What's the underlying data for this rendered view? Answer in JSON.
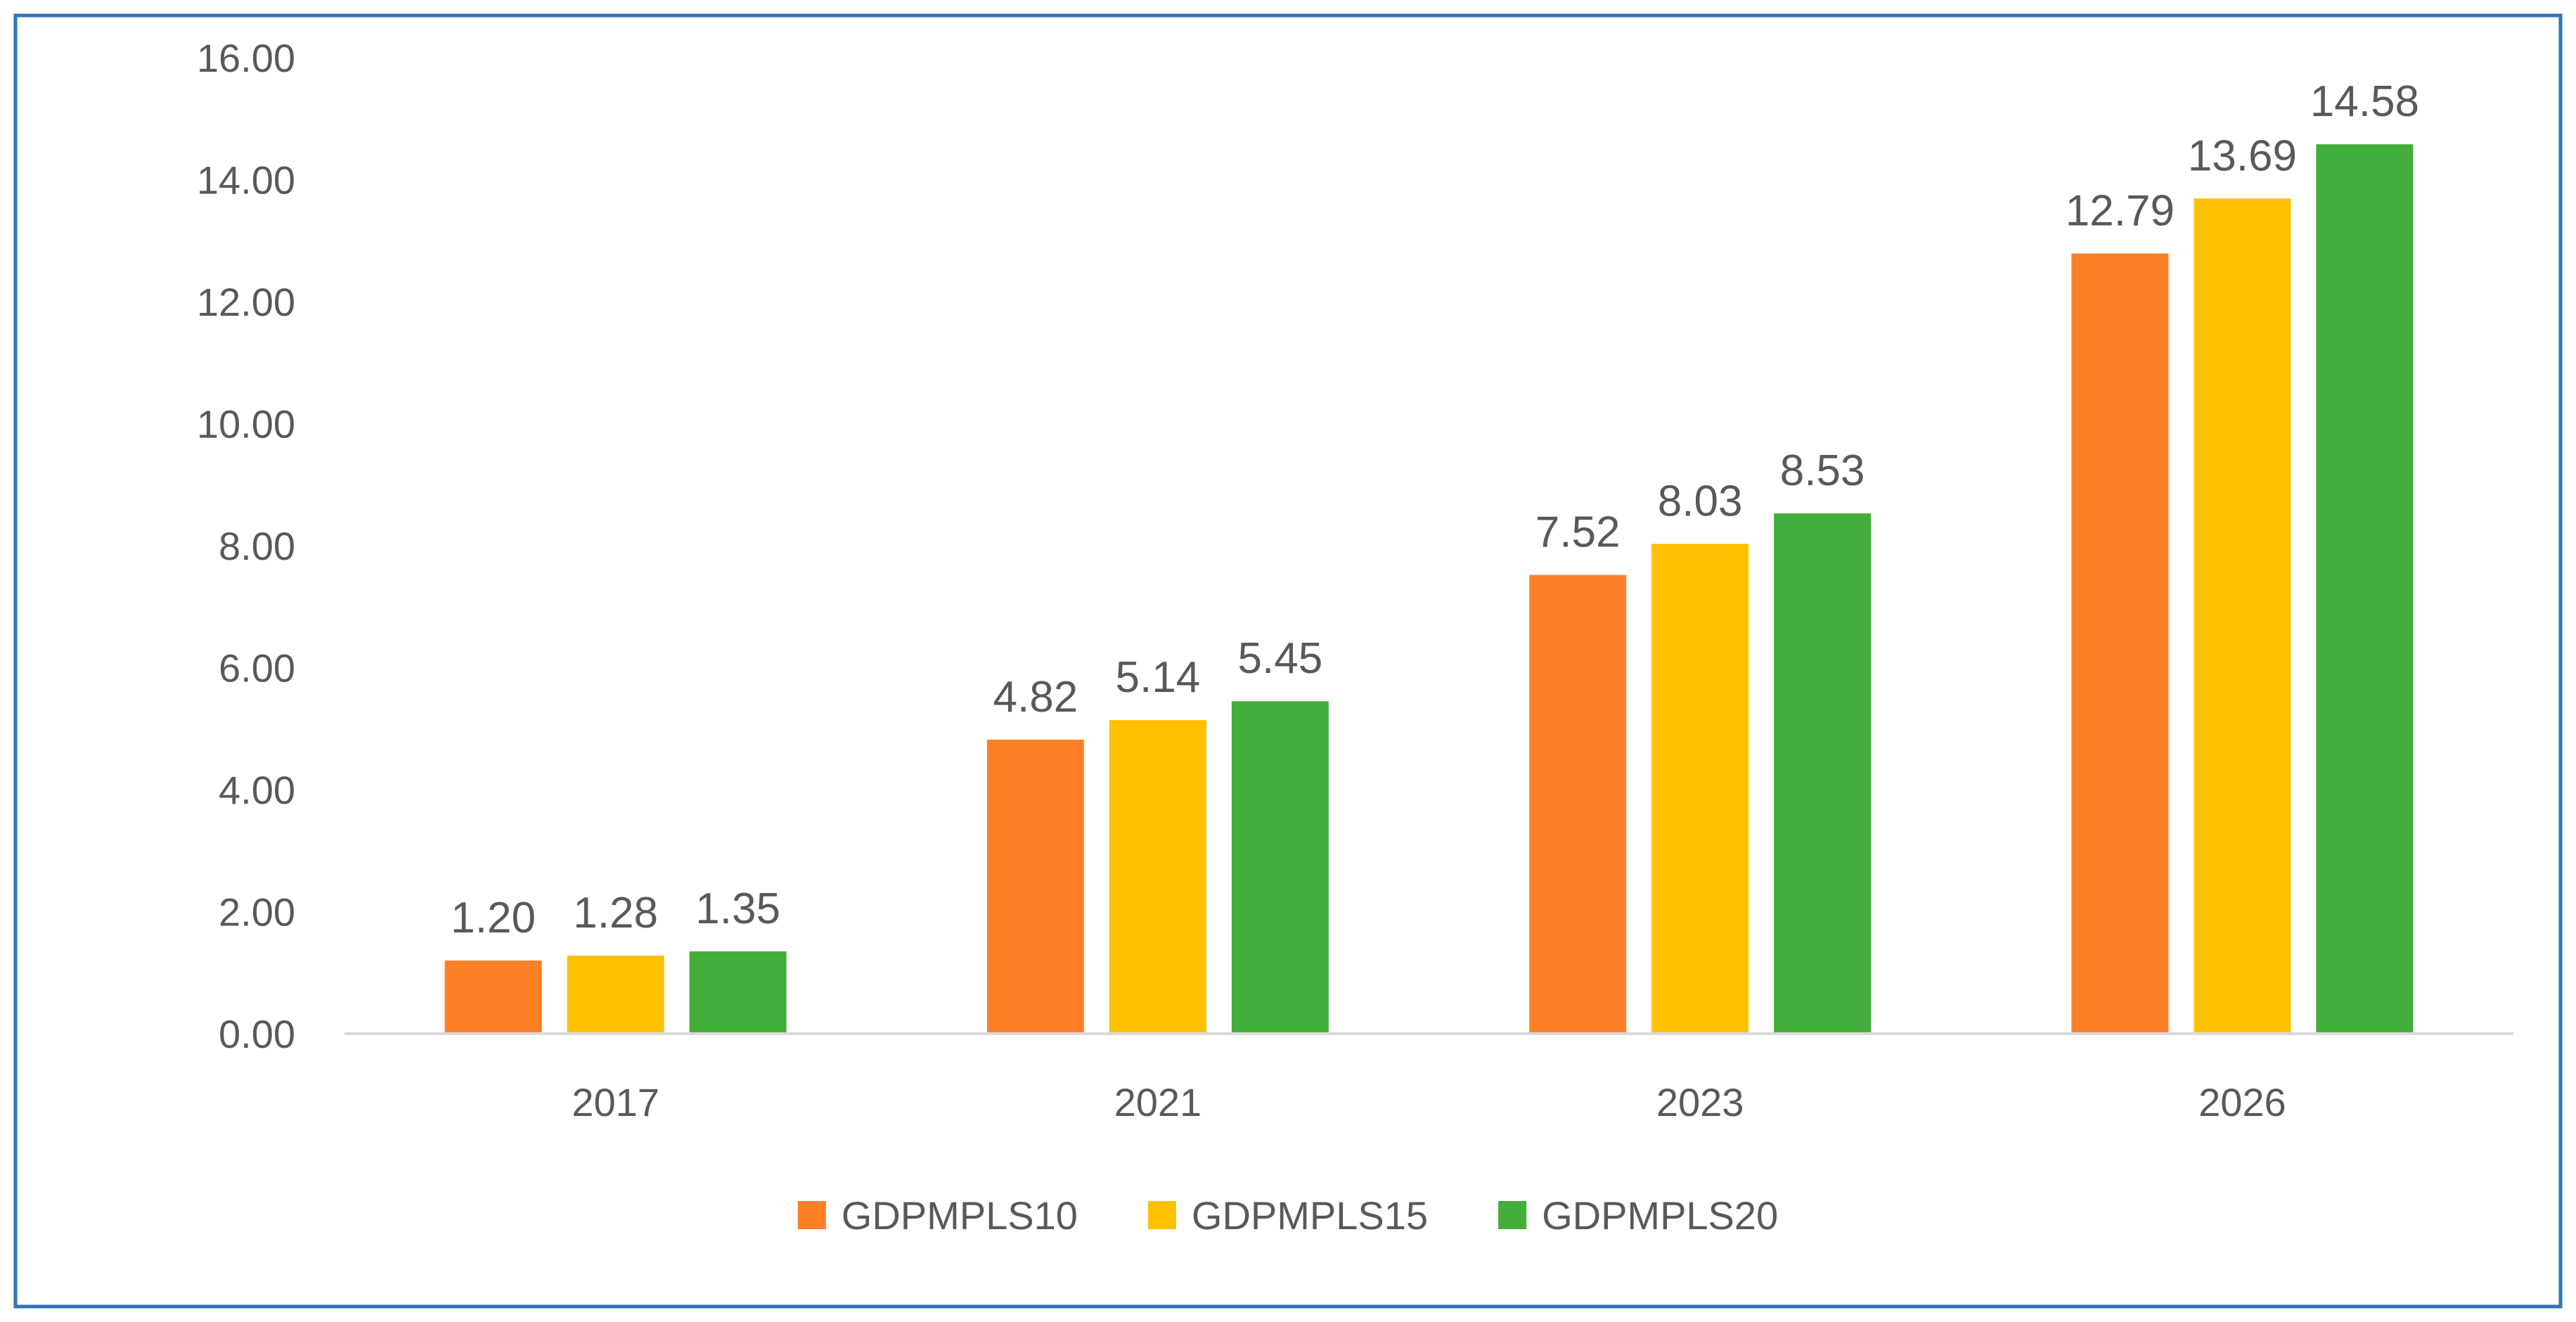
{
  "chart_data": {
    "type": "bar",
    "title": "",
    "xlabel": "",
    "ylabel": "",
    "categories": [
      "2017",
      "2021",
      "2023",
      "2026"
    ],
    "series": [
      {
        "name": "GDPMPLS10",
        "color": "#FF7F27",
        "values": [
          1.2,
          4.82,
          7.52,
          12.79
        ],
        "labels": [
          "1.20",
          "4.82",
          "7.52",
          "12.79"
        ]
      },
      {
        "name": "GDPMPLS15",
        "color": "#FFC000",
        "values": [
          1.28,
          5.14,
          8.03,
          13.69
        ],
        "labels": [
          "1.28",
          "5.14",
          "8.03",
          "13.69"
        ]
      },
      {
        "name": "GDPMPLS20",
        "color": "#43AE3B",
        "values": [
          1.35,
          5.45,
          8.53,
          14.58
        ],
        "labels": [
          "1.35",
          "5.45",
          "8.53",
          "14.58"
        ]
      }
    ],
    "ylim": [
      0,
      16
    ],
    "yticks": [
      "0.00",
      "2.00",
      "4.00",
      "6.00",
      "8.00",
      "10.00",
      "12.00",
      "14.00",
      "16.00"
    ],
    "grid": false,
    "legend_position": "bottom",
    "frame_color": "#2E75B6",
    "axis_color": "#D9D9D9"
  }
}
